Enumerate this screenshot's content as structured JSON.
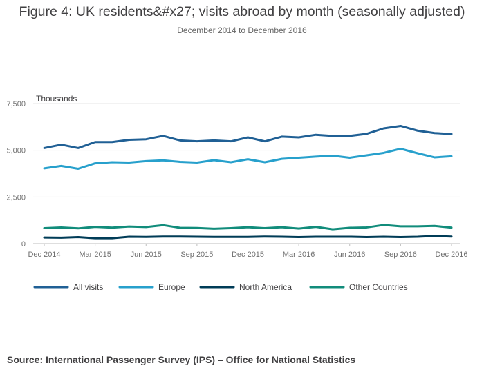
{
  "chart_data": {
    "type": "line",
    "title": "Figure 4: UK residents&#x27; visits abroad by month (seasonally adjusted)",
    "subtitle": "December 2014 to December 2016",
    "ylabel": "Thousands",
    "xlabel": "",
    "ylim": [
      0,
      7500
    ],
    "yticks": [
      0,
      2500,
      5000,
      7500
    ],
    "ytick_labels": [
      "0",
      "2,500",
      "5,000",
      "7,500"
    ],
    "grid": true,
    "legend_position": "bottom-left",
    "categories": [
      "Dec 2014",
      "Jan 2015",
      "Feb 2015",
      "Mar 2015",
      "Apr 2015",
      "May 2015",
      "Jun 2015",
      "Jul 2015",
      "Aug 2015",
      "Sep 2015",
      "Oct 2015",
      "Nov 2015",
      "Dec 2015",
      "Jan 2016",
      "Feb 2016",
      "Mar 2016",
      "Apr 2016",
      "May 2016",
      "Jun 2016",
      "Jul 2016",
      "Aug 2016",
      "Sep 2016",
      "Oct 2016",
      "Nov 2016",
      "Dec 2016"
    ],
    "xtick_labels": [
      "Dec 2014",
      "Mar 2015",
      "Jun 2015",
      "Sep 2015",
      "Dec 2015",
      "Mar 2016",
      "Jun 2016",
      "Sep 2016",
      "Dec 2016"
    ],
    "series": [
      {
        "name": "All visits",
        "color": "#206095",
        "values": [
          5120,
          5300,
          5120,
          5440,
          5440,
          5560,
          5590,
          5770,
          5530,
          5480,
          5530,
          5480,
          5690,
          5480,
          5730,
          5690,
          5830,
          5770,
          5770,
          5880,
          6170,
          6300,
          6050,
          5920,
          5870
        ]
      },
      {
        "name": "Europe",
        "color": "#27a0cc",
        "values": [
          4030,
          4160,
          4010,
          4300,
          4360,
          4340,
          4420,
          4460,
          4380,
          4340,
          4470,
          4360,
          4520,
          4360,
          4540,
          4600,
          4660,
          4710,
          4600,
          4730,
          4860,
          5080,
          4840,
          4620,
          4680
        ]
      },
      {
        "name": "North America",
        "color": "#003c57",
        "values": [
          330,
          320,
          350,
          290,
          290,
          370,
          360,
          380,
          380,
          370,
          360,
          360,
          360,
          380,
          370,
          350,
          370,
          370,
          370,
          350,
          370,
          350,
          370,
          410,
          380
        ]
      },
      {
        "name": "Other Countries",
        "color": "#118c7b",
        "values": [
          830,
          870,
          820,
          900,
          860,
          920,
          890,
          990,
          850,
          840,
          800,
          830,
          880,
          830,
          880,
          810,
          900,
          770,
          850,
          870,
          1000,
          930,
          930,
          950,
          860
        ]
      }
    ]
  },
  "source": "Source: International Passenger Survey (IPS) – Office for National Statistics"
}
